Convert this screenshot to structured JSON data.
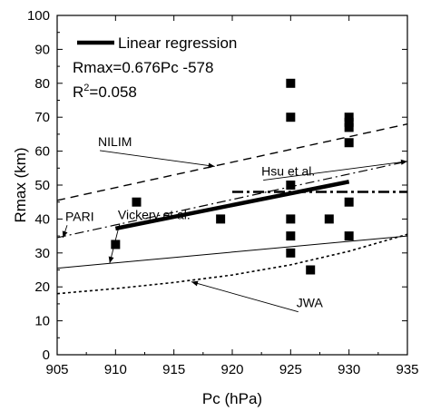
{
  "chart_data": {
    "type": "scatter",
    "xlabel": "Pc (hPa)",
    "ylabel": "Rmax (km)",
    "xlim": [
      905,
      935
    ],
    "ylim": [
      0,
      100
    ],
    "x_ticks": [
      905,
      910,
      915,
      920,
      925,
      930,
      935
    ],
    "y_ticks": [
      0,
      10,
      20,
      30,
      40,
      50,
      60,
      70,
      80,
      90,
      100
    ],
    "grid": false,
    "legend": {
      "position": "top-left",
      "label": "Linear regression",
      "equation": "Rmax=0.676Pc -578",
      "r2_prefix": "R",
      "r2_sup": "2",
      "r2_suffix": "=0.058"
    },
    "points": [
      {
        "x": 910,
        "y": 32.5
      },
      {
        "x": 911.8,
        "y": 45
      },
      {
        "x": 919,
        "y": 40
      },
      {
        "x": 925,
        "y": 80
      },
      {
        "x": 925,
        "y": 70
      },
      {
        "x": 925,
        "y": 50
      },
      {
        "x": 925,
        "y": 40
      },
      {
        "x": 925,
        "y": 35
      },
      {
        "x": 925,
        "y": 30
      },
      {
        "x": 926.7,
        "y": 25
      },
      {
        "x": 928.3,
        "y": 40
      },
      {
        "x": 930,
        "y": 70
      },
      {
        "x": 930,
        "y": 68.5
      },
      {
        "x": 930,
        "y": 67
      },
      {
        "x": 930,
        "y": 62.5
      },
      {
        "x": 930,
        "y": 45
      },
      {
        "x": 930,
        "y": 35
      }
    ],
    "lines": [
      {
        "name": "Linear regression",
        "style": "thick-solid",
        "points": [
          [
            910,
            37.2
          ],
          [
            930,
            51
          ]
        ]
      },
      {
        "name": "NILIM",
        "style": "dashed",
        "points": [
          [
            905,
            45.5
          ],
          [
            935,
            68
          ]
        ]
      },
      {
        "name": "PARI",
        "style": "dash-dot",
        "points": [
          [
            905,
            34.5
          ],
          [
            935,
            57
          ]
        ]
      },
      {
        "name": "Hsu et al.",
        "style": "thick-dash-dot",
        "points": [
          [
            920,
            48
          ],
          [
            935,
            48
          ]
        ]
      },
      {
        "name": "Vickery et al.",
        "style": "thin-solid",
        "points": [
          [
            905,
            25.5
          ],
          [
            935,
            35
          ]
        ]
      },
      {
        "name": "JWA",
        "style": "dotted",
        "points": [
          [
            905,
            18
          ],
          [
            910,
            19.5
          ],
          [
            915,
            21.3
          ],
          [
            920,
            23.5
          ],
          [
            925,
            26.5
          ],
          [
            930,
            30.5
          ],
          [
            935,
            35.5
          ]
        ]
      }
    ],
    "annotations": [
      {
        "text": "NILIM",
        "text_at": [
          908.5,
          61.5
        ],
        "arrow_to": [
          918.5,
          55.5
        ]
      },
      {
        "text": "PARI",
        "text_at": [
          905.7,
          39.5
        ],
        "arrow_to": [
          905.5,
          34.5
        ]
      },
      {
        "text": "Hsu et al.",
        "text_at": [
          922.5,
          52.8
        ],
        "arrow_to": [
          935,
          57
        ]
      },
      {
        "text": "Vickery et al.",
        "text_at": [
          910.2,
          40
        ],
        "arrow_to": [
          909.5,
          27
        ]
      },
      {
        "text": "JWA",
        "text_at": [
          925.5,
          14
        ],
        "arrow_to": [
          916.5,
          21.5
        ]
      }
    ]
  }
}
